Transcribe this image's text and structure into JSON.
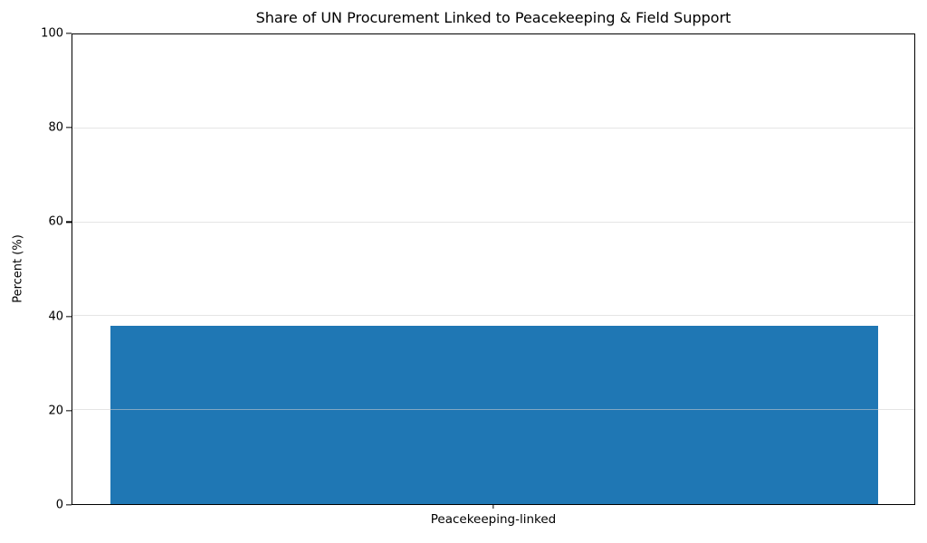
{
  "chart_data": {
    "type": "bar",
    "title": "Share of UN Procurement Linked to Peacekeeping & Field Support",
    "categories": [
      "Peacekeeping-linked"
    ],
    "values": [
      38
    ],
    "xlabel": "",
    "ylabel": "Percent (%)",
    "ylim": [
      0,
      100
    ],
    "yticks": [
      0,
      20,
      40,
      60,
      80,
      100
    ],
    "grid": "horizontal",
    "legend": "none",
    "bar_color": "#1f77b4",
    "background_color": "#ffffff",
    "spine_color": "#000000",
    "gridline_color": "#ececec"
  }
}
